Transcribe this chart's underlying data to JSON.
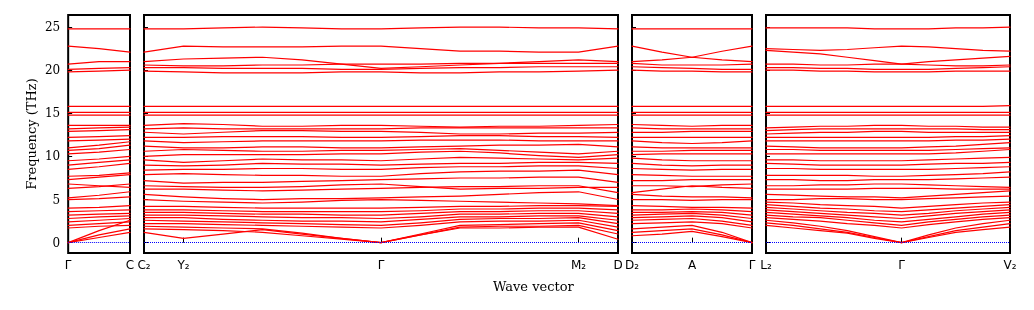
{
  "chart_data": [
    {
      "type": "line",
      "ylabel": "Frequency (THz)",
      "categories": [
        "Γ",
        null,
        "C"
      ],
      "ylim": [
        -1.2,
        26.4
      ],
      "yticks": [
        0,
        5,
        10,
        15,
        20,
        25
      ],
      "marker": "none",
      "ref_lines": [
        {
          "axis": "y",
          "value": 0,
          "color": "#0000ff",
          "line_style": "dotted"
        }
      ],
      "series": [
        {
          "color": "#ff0000",
          "values": [
            0,
            0.6,
            1.2
          ]
        },
        {
          "color": "#ff0000",
          "values": [
            0,
            0.9,
            1.6
          ]
        },
        {
          "color": "#ff0000",
          "values": [
            0,
            1.4,
            2.6
          ]
        },
        {
          "color": "#ff0000",
          "values": [
            1.7,
            1.9,
            2.0
          ]
        },
        {
          "color": "#ff0000",
          "values": [
            2.0,
            2.2,
            2.4
          ]
        },
        {
          "color": "#ff0000",
          "values": [
            2.4,
            2.6,
            2.8
          ]
        },
        {
          "color": "#ff0000",
          "values": [
            2.8,
            3.0,
            3.1
          ]
        },
        {
          "color": "#ff0000",
          "values": [
            3.2,
            3.3,
            3.4
          ]
        },
        {
          "color": "#ff0000",
          "values": [
            3.6,
            3.7,
            3.8
          ]
        },
        {
          "color": "#ff0000",
          "values": [
            4.0,
            4.1,
            4.3
          ]
        },
        {
          "color": "#ff0000",
          "values": [
            5.0,
            5.1,
            5.3
          ]
        },
        {
          "color": "#ff0000",
          "values": [
            5.2,
            5.5,
            5.9
          ]
        },
        {
          "color": "#ff0000",
          "values": [
            6.3,
            6.5,
            6.8
          ]
        },
        {
          "color": "#ff0000",
          "values": [
            6.8,
            6.6,
            6.4
          ]
        },
        {
          "color": "#ff0000",
          "values": [
            7.3,
            7.6,
            7.9
          ]
        },
        {
          "color": "#ff0000",
          "values": [
            7.7,
            7.8,
            8.1
          ]
        },
        {
          "color": "#ff0000",
          "values": [
            8.5,
            8.8,
            9.2
          ]
        },
        {
          "color": "#ff0000",
          "values": [
            9.0,
            9.3,
            9.6
          ]
        },
        {
          "color": "#ff0000",
          "values": [
            9.5,
            9.7,
            10.0
          ]
        },
        {
          "color": "#ff0000",
          "values": [
            10.3,
            10.5,
            10.8
          ]
        },
        {
          "color": "#ff0000",
          "values": [
            10.7,
            10.9,
            11.3
          ]
        },
        {
          "color": "#ff0000",
          "values": [
            11.0,
            11.3,
            11.7
          ]
        },
        {
          "color": "#ff0000",
          "values": [
            11.8,
            11.9,
            12.0
          ]
        },
        {
          "color": "#ff0000",
          "values": [
            12.2,
            12.3,
            12.4
          ]
        },
        {
          "color": "#ff0000",
          "values": [
            12.9,
            13.0,
            13.1
          ]
        },
        {
          "color": "#ff0000",
          "values": [
            13.2,
            13.3,
            13.4
          ]
        },
        {
          "color": "#ff0000",
          "values": [
            13.6,
            13.6,
            13.6
          ]
        },
        {
          "color": "#ff0000",
          "values": [
            14.8,
            14.8,
            14.8
          ]
        },
        {
          "color": "#ff0000",
          "values": [
            15.1,
            15.1,
            15.1
          ]
        },
        {
          "color": "#ff0000",
          "values": [
            15.8,
            15.8,
            15.8
          ]
        },
        {
          "color": "#ff0000",
          "values": [
            19.8,
            19.9,
            20.0
          ]
        },
        {
          "color": "#ff0000",
          "values": [
            20.1,
            20.2,
            20.3
          ]
        },
        {
          "color": "#ff0000",
          "values": [
            20.7,
            21.0,
            21.0
          ]
        },
        {
          "color": "#ff0000",
          "values": [
            22.8,
            22.5,
            22.1
          ]
        },
        {
          "color": "#ff0000",
          "values": [
            24.8,
            24.8,
            24.8
          ]
        }
      ]
    },
    {
      "type": "line",
      "xlabel": "Wave vector",
      "tick_labels": "x",
      "categories": [
        "C₂",
        "Y₂",
        null,
        null,
        null,
        null,
        "Γ",
        null,
        null,
        null,
        null,
        "M₂",
        "D"
      ],
      "ylim": [
        -1.2,
        26.4
      ],
      "yticks": [
        0,
        5,
        10,
        15,
        20,
        25
      ],
      "marker": "none",
      "ref_lines": [
        {
          "axis": "y",
          "value": 0,
          "color": "#0000ff",
          "line_style": "dotted"
        }
      ],
      "series": [
        {
          "color": "#ff0000",
          "values": [
            1.2,
            0.5,
            1.0,
            1.5,
            1.0,
            0.5,
            0,
            0.9,
            1.7,
            1.7,
            1.8,
            1.8,
            0.4
          ]
        },
        {
          "color": "#ff0000",
          "values": [
            1.6,
            1.5,
            1.4,
            1.2,
            0.8,
            0.4,
            0,
            0.9,
            1.8,
            1.9,
            1.9,
            2.0,
            1.0
          ]
        },
        {
          "color": "#ff0000",
          "values": [
            1.9,
            1.8,
            1.7,
            1.6,
            1.1,
            0.5,
            0,
            1.0,
            2.0,
            2.1,
            2.2,
            2.3,
            1.4
          ]
        },
        {
          "color": "#ff0000",
          "values": [
            2.2,
            2.2,
            2.1,
            2.0,
            1.9,
            1.8,
            1.7,
            2.0,
            2.4,
            2.5,
            2.5,
            2.6,
            1.8
          ]
        },
        {
          "color": "#ff0000",
          "values": [
            2.6,
            2.5,
            2.4,
            2.3,
            2.2,
            2.1,
            2.0,
            2.3,
            2.7,
            2.8,
            2.8,
            2.9,
            2.2
          ]
        },
        {
          "color": "#ff0000",
          "values": [
            2.9,
            2.9,
            2.7,
            2.6,
            2.5,
            2.5,
            2.4,
            2.7,
            3.0,
            3.0,
            3.1,
            3.1,
            2.6
          ]
        },
        {
          "color": "#ff0000",
          "values": [
            3.2,
            3.2,
            3.1,
            3.0,
            2.9,
            2.9,
            2.8,
            3.0,
            3.3,
            3.3,
            3.4,
            3.4,
            3.0
          ]
        },
        {
          "color": "#ff0000",
          "values": [
            3.5,
            3.5,
            3.4,
            3.3,
            3.3,
            3.2,
            3.2,
            3.4,
            3.6,
            3.6,
            3.7,
            3.7,
            3.4
          ]
        },
        {
          "color": "#ff0000",
          "values": [
            3.8,
            3.8,
            3.7,
            3.6,
            3.6,
            3.6,
            3.6,
            3.7,
            3.9,
            3.9,
            4.0,
            4.0,
            3.8
          ]
        },
        {
          "color": "#ff0000",
          "values": [
            4.2,
            4.2,
            4.1,
            4.0,
            4.0,
            4.0,
            4.0,
            4.1,
            4.2,
            4.2,
            4.3,
            4.3,
            4.2
          ]
        },
        {
          "color": "#ff0000",
          "values": [
            5.0,
            4.8,
            4.7,
            4.6,
            4.7,
            4.9,
            5.0,
            4.9,
            4.8,
            4.7,
            4.6,
            4.5,
            4.3
          ]
        },
        {
          "color": "#ff0000",
          "values": [
            5.6,
            5.3,
            5.1,
            5.0,
            5.1,
            5.1,
            5.2,
            5.3,
            5.4,
            5.6,
            5.8,
            5.9,
            5.0
          ]
        },
        {
          "color": "#ff0000",
          "values": [
            6.2,
            6.2,
            6.1,
            6.0,
            6.1,
            6.2,
            6.3,
            6.4,
            6.5,
            6.5,
            6.6,
            6.6,
            5.8
          ]
        },
        {
          "color": "#ff0000",
          "values": [
            6.6,
            6.5,
            6.4,
            6.4,
            6.5,
            6.7,
            6.8,
            6.5,
            6.2,
            6.3,
            6.3,
            6.4,
            6.4
          ]
        },
        {
          "color": "#ff0000",
          "values": [
            7.2,
            6.9,
            7.0,
            7.0,
            7.1,
            7.2,
            7.3,
            7.4,
            7.5,
            7.5,
            7.6,
            7.6,
            7.0
          ]
        },
        {
          "color": "#ff0000",
          "values": [
            7.9,
            8.0,
            7.9,
            7.8,
            7.8,
            7.7,
            7.7,
            8.0,
            8.2,
            8.3,
            8.3,
            8.4,
            7.9
          ]
        },
        {
          "color": "#ff0000",
          "values": [
            8.4,
            8.5,
            8.5,
            8.6,
            8.6,
            8.5,
            8.5,
            8.7,
            8.8,
            8.8,
            8.9,
            8.9,
            8.6
          ]
        },
        {
          "color": "#ff0000",
          "values": [
            9.0,
            8.9,
            9.0,
            9.2,
            9.1,
            9.1,
            9.0,
            9.1,
            9.2,
            9.2,
            9.3,
            9.3,
            9.2
          ]
        },
        {
          "color": "#ff0000",
          "values": [
            9.6,
            9.3,
            9.5,
            9.7,
            9.6,
            9.6,
            9.5,
            9.7,
            9.9,
            9.8,
            9.7,
            9.6,
            9.8
          ]
        },
        {
          "color": "#ff0000",
          "values": [
            10.0,
            10.2,
            10.2,
            10.2,
            10.2,
            10.3,
            10.3,
            10.5,
            10.6,
            10.4,
            10.1,
            9.9,
            10.2
          ]
        },
        {
          "color": "#ff0000",
          "values": [
            10.6,
            10.8,
            10.7,
            10.6,
            10.6,
            10.7,
            10.7,
            10.8,
            10.9,
            10.7,
            10.5,
            10.3,
            10.6
          ]
        },
        {
          "color": "#ff0000",
          "values": [
            11.2,
            11.0,
            11.0,
            11.1,
            11.1,
            11.0,
            11.0,
            11.1,
            11.2,
            11.3,
            11.3,
            11.4,
            11.1
          ]
        },
        {
          "color": "#ff0000",
          "values": [
            11.8,
            11.6,
            11.7,
            11.8,
            11.8,
            11.8,
            11.8,
            11.9,
            11.9,
            11.9,
            11.8,
            11.8,
            11.8
          ]
        },
        {
          "color": "#ff0000",
          "values": [
            12.2,
            12.2,
            12.3,
            12.3,
            12.3,
            12.2,
            12.2,
            12.3,
            12.4,
            12.4,
            12.3,
            12.3,
            12.2
          ]
        },
        {
          "color": "#ff0000",
          "values": [
            12.8,
            12.6,
            12.8,
            13.0,
            13.0,
            12.9,
            12.9,
            12.8,
            12.6,
            12.6,
            12.7,
            12.7,
            12.8
          ]
        },
        {
          "color": "#ff0000",
          "values": [
            13.2,
            13.3,
            13.2,
            13.2,
            13.2,
            13.2,
            13.2,
            13.3,
            13.3,
            13.3,
            13.3,
            13.3,
            13.3
          ]
        },
        {
          "color": "#ff0000",
          "values": [
            13.6,
            13.8,
            13.7,
            13.5,
            13.5,
            13.6,
            13.6,
            13.5,
            13.4,
            13.5,
            13.5,
            13.6,
            13.7
          ]
        },
        {
          "color": "#ff0000",
          "values": [
            14.8,
            14.8,
            14.8,
            14.8,
            14.8,
            14.8,
            14.8,
            14.8,
            14.8,
            14.8,
            14.8,
            14.8,
            14.8
          ]
        },
        {
          "color": "#ff0000",
          "values": [
            15.1,
            15.1,
            15.1,
            15.1,
            15.1,
            15.1,
            15.1,
            15.1,
            15.1,
            15.1,
            15.1,
            15.1,
            15.1
          ]
        },
        {
          "color": "#ff0000",
          "values": [
            15.8,
            15.8,
            15.8,
            15.8,
            15.8,
            15.8,
            15.8,
            15.8,
            15.8,
            15.8,
            15.8,
            15.8,
            15.8
          ]
        },
        {
          "color": "#ff0000",
          "values": [
            19.9,
            19.8,
            19.7,
            19.7,
            19.7,
            19.8,
            19.8,
            19.7,
            19.7,
            19.8,
            19.8,
            19.9,
            20.0
          ]
        },
        {
          "color": "#ff0000",
          "values": [
            20.3,
            20.3,
            20.2,
            20.2,
            20.2,
            20.1,
            20.1,
            20.2,
            20.3,
            20.3,
            20.4,
            20.4,
            20.4
          ]
        },
        {
          "color": "#ff0000",
          "values": [
            20.6,
            20.5,
            20.5,
            20.6,
            20.6,
            20.7,
            20.7,
            20.7,
            20.8,
            20.8,
            20.8,
            20.8,
            20.8
          ]
        },
        {
          "color": "#ff0000",
          "values": [
            21.0,
            21.3,
            21.4,
            21.5,
            21.2,
            20.7,
            20.2,
            20.4,
            20.6,
            20.8,
            21.0,
            21.2,
            21.0
          ]
        },
        {
          "color": "#ff0000",
          "values": [
            22.1,
            22.8,
            22.7,
            22.7,
            22.7,
            22.8,
            22.8,
            22.5,
            22.2,
            22.2,
            22.1,
            22.1,
            22.8
          ]
        },
        {
          "color": "#ff0000",
          "values": [
            24.8,
            24.8,
            24.9,
            25.0,
            24.9,
            24.8,
            24.8,
            24.9,
            25.0,
            25.0,
            24.9,
            24.9,
            24.8
          ]
        }
      ]
    },
    {
      "type": "line",
      "tick_labels": "x",
      "categories": [
        "D₂",
        null,
        "A",
        null,
        "Γ"
      ],
      "ylim": [
        -1.2,
        26.4
      ],
      "yticks": [
        0,
        5,
        10,
        15,
        20,
        25
      ],
      "marker": "none",
      "ref_lines": [
        {
          "axis": "y",
          "value": 0,
          "color": "#0000ff",
          "line_style": "dotted"
        }
      ],
      "series": [
        {
          "color": "#ff0000",
          "values": [
            0.8,
            1.0,
            1.3,
            0.7,
            0
          ]
        },
        {
          "color": "#ff0000",
          "values": [
            1.2,
            1.4,
            1.6,
            0.9,
            0
          ]
        },
        {
          "color": "#ff0000",
          "values": [
            1.6,
            1.8,
            2.0,
            1.2,
            0
          ]
        },
        {
          "color": "#ff0000",
          "values": [
            2.2,
            2.3,
            2.4,
            2.2,
            1.7
          ]
        },
        {
          "color": "#ff0000",
          "values": [
            2.6,
            2.7,
            2.8,
            2.5,
            2.0
          ]
        },
        {
          "color": "#ff0000",
          "values": [
            2.9,
            3.0,
            3.1,
            2.9,
            2.4
          ]
        },
        {
          "color": "#ff0000",
          "values": [
            3.2,
            3.3,
            3.4,
            3.2,
            2.8
          ]
        },
        {
          "color": "#ff0000",
          "values": [
            3.5,
            3.5,
            3.6,
            3.5,
            3.2
          ]
        },
        {
          "color": "#ff0000",
          "values": [
            3.8,
            3.8,
            3.9,
            3.8,
            3.6
          ]
        },
        {
          "color": "#ff0000",
          "values": [
            4.3,
            4.2,
            4.1,
            4.1,
            4.0
          ]
        },
        {
          "color": "#ff0000",
          "values": [
            5.0,
            5.0,
            4.9,
            5.0,
            5.0
          ]
        },
        {
          "color": "#ff0000",
          "values": [
            5.6,
            5.4,
            5.3,
            5.3,
            5.2
          ]
        },
        {
          "color": "#ff0000",
          "values": [
            5.8,
            6.2,
            6.6,
            6.4,
            6.3
          ]
        },
        {
          "color": "#ff0000",
          "values": [
            6.6,
            6.6,
            6.5,
            6.7,
            6.8
          ]
        },
        {
          "color": "#ff0000",
          "values": [
            7.2,
            7.2,
            7.3,
            7.3,
            7.3
          ]
        },
        {
          "color": "#ff0000",
          "values": [
            7.9,
            7.8,
            7.7,
            7.7,
            7.7
          ]
        },
        {
          "color": "#ff0000",
          "values": [
            8.6,
            8.5,
            8.4,
            8.5,
            8.5
          ]
        },
        {
          "color": "#ff0000",
          "values": [
            9.2,
            9.0,
            8.9,
            9.0,
            9.0
          ]
        },
        {
          "color": "#ff0000",
          "values": [
            9.8,
            9.6,
            9.5,
            9.5,
            9.5
          ]
        },
        {
          "color": "#ff0000",
          "values": [
            10.2,
            10.3,
            10.3,
            10.3,
            10.3
          ]
        },
        {
          "color": "#ff0000",
          "values": [
            10.6,
            10.6,
            10.7,
            10.7,
            10.7
          ]
        },
        {
          "color": "#ff0000",
          "values": [
            11.1,
            11.0,
            11.0,
            11.0,
            11.0
          ]
        },
        {
          "color": "#ff0000",
          "values": [
            11.8,
            11.6,
            11.5,
            11.6,
            11.8
          ]
        },
        {
          "color": "#ff0000",
          "values": [
            12.2,
            12.2,
            12.2,
            12.2,
            12.2
          ]
        },
        {
          "color": "#ff0000",
          "values": [
            12.8,
            12.8,
            12.9,
            12.9,
            12.9
          ]
        },
        {
          "color": "#ff0000",
          "values": [
            13.3,
            13.2,
            13.2,
            13.2,
            13.2
          ]
        },
        {
          "color": "#ff0000",
          "values": [
            13.7,
            13.6,
            13.5,
            13.6,
            13.6
          ]
        },
        {
          "color": "#ff0000",
          "values": [
            14.8,
            14.8,
            14.8,
            14.8,
            14.8
          ]
        },
        {
          "color": "#ff0000",
          "values": [
            15.1,
            15.1,
            15.1,
            15.1,
            15.1
          ]
        },
        {
          "color": "#ff0000",
          "values": [
            15.8,
            15.8,
            15.8,
            15.8,
            15.8
          ]
        },
        {
          "color": "#ff0000",
          "values": [
            20.0,
            19.9,
            19.9,
            19.8,
            19.8
          ]
        },
        {
          "color": "#ff0000",
          "values": [
            20.4,
            20.3,
            20.2,
            20.1,
            20.1
          ]
        },
        {
          "color": "#ff0000",
          "values": [
            20.8,
            20.6,
            20.6,
            20.6,
            20.7
          ]
        },
        {
          "color": "#ff0000",
          "values": [
            21.0,
            21.2,
            21.5,
            21.2,
            21.0
          ]
        },
        {
          "color": "#ff0000",
          "values": [
            22.8,
            22.1,
            21.5,
            22.2,
            22.8
          ]
        },
        {
          "color": "#ff0000",
          "values": [
            24.8,
            24.8,
            24.8,
            24.8,
            24.8
          ]
        }
      ]
    },
    {
      "type": "line",
      "tick_labels": "x",
      "categories": [
        "L₂",
        null,
        null,
        null,
        null,
        "Γ",
        null,
        null,
        null,
        "V₂"
      ],
      "ylim": [
        -1.2,
        26.4
      ],
      "yticks": [
        0,
        5,
        10,
        15,
        20,
        25
      ],
      "marker": "none",
      "ref_lines": [
        {
          "axis": "y",
          "value": 0,
          "color": "#0000ff",
          "line_style": "dotted"
        }
      ],
      "series": [
        {
          "color": "#ff0000",
          "values": [
            2.0,
            1.7,
            1.4,
            1.1,
            0.5,
            0,
            0.6,
            1.2,
            1.5,
            1.8
          ]
        },
        {
          "color": "#ff0000",
          "values": [
            2.3,
            2.0,
            1.6,
            1.2,
            0.6,
            0,
            0.7,
            1.4,
            1.8,
            2.2
          ]
        },
        {
          "color": "#ff0000",
          "values": [
            2.6,
            2.3,
            1.9,
            1.4,
            0.7,
            0,
            0.9,
            1.7,
            2.2,
            2.6
          ]
        },
        {
          "color": "#ff0000",
          "values": [
            2.9,
            2.7,
            2.5,
            2.2,
            2.0,
            1.7,
            2.1,
            2.4,
            2.7,
            2.9
          ]
        },
        {
          "color": "#ff0000",
          "values": [
            3.2,
            3.0,
            2.9,
            2.6,
            2.3,
            2.0,
            2.4,
            2.7,
            3.0,
            3.2
          ]
        },
        {
          "color": "#ff0000",
          "values": [
            3.5,
            3.3,
            3.1,
            2.9,
            2.6,
            2.4,
            2.7,
            3.0,
            3.3,
            3.5
          ]
        },
        {
          "color": "#ff0000",
          "values": [
            3.8,
            3.6,
            3.4,
            3.2,
            3.0,
            2.8,
            3.1,
            3.4,
            3.6,
            3.8
          ]
        },
        {
          "color": "#ff0000",
          "values": [
            4.1,
            3.9,
            3.7,
            3.5,
            3.4,
            3.2,
            3.4,
            3.7,
            3.9,
            4.1
          ]
        },
        {
          "color": "#ff0000",
          "values": [
            4.4,
            4.2,
            4.0,
            3.9,
            3.7,
            3.6,
            3.8,
            4.0,
            4.2,
            4.4
          ]
        },
        {
          "color": "#ff0000",
          "values": [
            4.7,
            4.6,
            4.4,
            4.3,
            4.2,
            4.0,
            4.2,
            4.4,
            4.6,
            4.7
          ]
        },
        {
          "color": "#ff0000",
          "values": [
            5.0,
            5.0,
            5.1,
            5.1,
            5.0,
            5.0,
            5.1,
            5.2,
            5.3,
            5.4
          ]
        },
        {
          "color": "#ff0000",
          "values": [
            5.6,
            5.5,
            5.4,
            5.3,
            5.3,
            5.2,
            5.4,
            5.6,
            5.8,
            6.0
          ]
        },
        {
          "color": "#ff0000",
          "values": [
            6.2,
            6.2,
            6.2,
            6.2,
            6.3,
            6.3,
            6.3,
            6.2,
            6.2,
            6.2
          ]
        },
        {
          "color": "#ff0000",
          "values": [
            6.6,
            6.6,
            6.7,
            6.7,
            6.8,
            6.8,
            6.7,
            6.6,
            6.5,
            6.4
          ]
        },
        {
          "color": "#ff0000",
          "values": [
            7.3,
            7.3,
            7.2,
            7.2,
            7.3,
            7.3,
            7.3,
            7.4,
            7.5,
            7.6
          ]
        },
        {
          "color": "#ff0000",
          "values": [
            7.8,
            7.8,
            7.8,
            7.8,
            7.7,
            7.7,
            7.8,
            7.9,
            8.0,
            8.2
          ]
        },
        {
          "color": "#ff0000",
          "values": [
            8.6,
            8.6,
            8.5,
            8.5,
            8.5,
            8.5,
            8.5,
            8.6,
            8.7,
            8.8
          ]
        },
        {
          "color": "#ff0000",
          "values": [
            9.2,
            9.1,
            9.0,
            9.0,
            9.0,
            9.0,
            9.1,
            9.2,
            9.2,
            9.3
          ]
        },
        {
          "color": "#ff0000",
          "values": [
            9.6,
            9.6,
            9.5,
            9.5,
            9.5,
            9.5,
            9.6,
            9.7,
            9.8,
            9.9
          ]
        },
        {
          "color": "#ff0000",
          "values": [
            10.3,
            10.3,
            10.3,
            10.3,
            10.3,
            10.3,
            10.3,
            10.4,
            10.6,
            10.8
          ]
        },
        {
          "color": "#ff0000",
          "values": [
            10.8,
            10.8,
            10.7,
            10.7,
            10.7,
            10.7,
            10.7,
            10.8,
            10.9,
            11.0
          ]
        },
        {
          "color": "#ff0000",
          "values": [
            11.2,
            11.1,
            11.0,
            11.0,
            11.0,
            11.0,
            11.1,
            11.2,
            11.4,
            11.6
          ]
        },
        {
          "color": "#ff0000",
          "values": [
            11.8,
            11.8,
            11.8,
            11.8,
            11.8,
            11.8,
            11.8,
            11.9,
            11.9,
            12.0
          ]
        },
        {
          "color": "#ff0000",
          "values": [
            12.2,
            12.2,
            12.2,
            12.2,
            12.2,
            12.2,
            12.2,
            12.3,
            12.3,
            12.4
          ]
        },
        {
          "color": "#ff0000",
          "values": [
            12.6,
            12.7,
            12.8,
            12.8,
            12.9,
            12.9,
            12.8,
            12.8,
            12.8,
            12.8
          ]
        },
        {
          "color": "#ff0000",
          "values": [
            13.0,
            13.1,
            13.2,
            13.2,
            13.2,
            13.2,
            13.2,
            13.2,
            13.1,
            13.1
          ]
        },
        {
          "color": "#ff0000",
          "values": [
            13.3,
            13.4,
            13.5,
            13.5,
            13.6,
            13.6,
            13.5,
            13.5,
            13.4,
            13.4
          ]
        },
        {
          "color": "#ff0000",
          "values": [
            14.8,
            14.8,
            14.8,
            14.8,
            14.8,
            14.8,
            14.8,
            14.8,
            14.8,
            14.8
          ]
        },
        {
          "color": "#ff0000",
          "values": [
            15.1,
            15.1,
            15.1,
            15.1,
            15.1,
            15.1,
            15.1,
            15.1,
            15.1,
            15.1
          ]
        },
        {
          "color": "#ff0000",
          "values": [
            15.8,
            15.8,
            15.8,
            15.8,
            15.8,
            15.8,
            15.8,
            15.8,
            15.8,
            15.9
          ]
        },
        {
          "color": "#ff0000",
          "values": [
            20.0,
            20.0,
            19.9,
            19.9,
            19.8,
            19.8,
            19.8,
            19.9,
            19.9,
            19.9
          ]
        },
        {
          "color": "#ff0000",
          "values": [
            20.3,
            20.3,
            20.2,
            20.2,
            20.1,
            20.1,
            20.1,
            20.2,
            20.3,
            20.4
          ]
        },
        {
          "color": "#ff0000",
          "values": [
            20.7,
            20.7,
            20.6,
            20.6,
            20.7,
            20.7,
            20.6,
            20.5,
            20.5,
            20.6
          ]
        },
        {
          "color": "#ff0000",
          "values": [
            22.3,
            22.1,
            21.9,
            21.5,
            21.1,
            20.7,
            21.0,
            21.2,
            21.4,
            21.6
          ]
        },
        {
          "color": "#ff0000",
          "values": [
            22.5,
            22.4,
            22.3,
            22.4,
            22.6,
            22.8,
            22.7,
            22.5,
            22.3,
            22.2
          ]
        },
        {
          "color": "#ff0000",
          "values": [
            24.9,
            24.9,
            24.9,
            24.9,
            24.8,
            24.8,
            24.8,
            24.9,
            24.9,
            25.0
          ]
        }
      ]
    }
  ]
}
